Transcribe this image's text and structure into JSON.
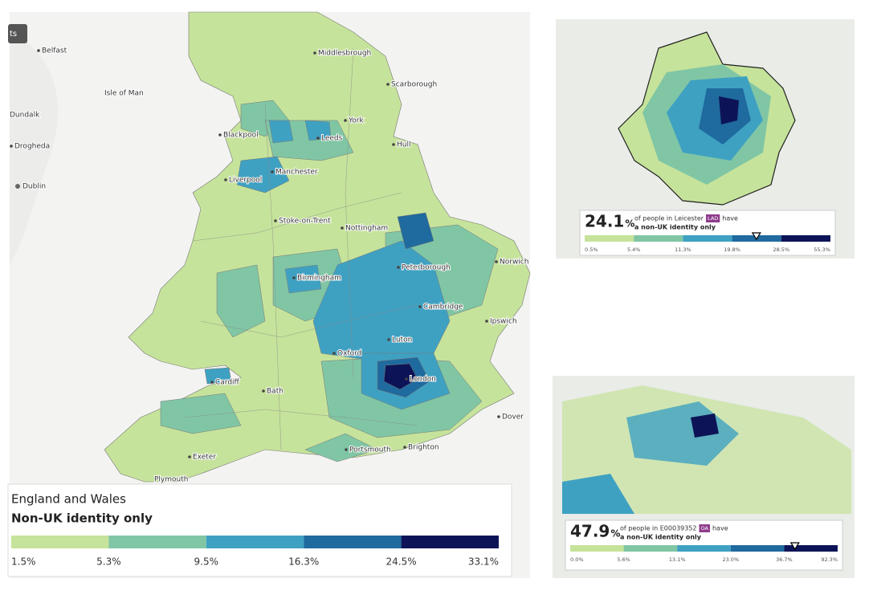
{
  "main_map": {
    "button": "ts",
    "places": [
      "Belfast",
      "Isle of Man",
      "Dundalk",
      "Drogheda",
      "Dublin",
      "Middlesbrough",
      "Scarborough",
      "York",
      "Blackpool",
      "Leeds",
      "Hull",
      "Manchester",
      "Liverpool",
      "Stoke-on-Trent",
      "Nottingham",
      "Norwich",
      "Peterborough",
      "Birmingham",
      "Cambridge",
      "Ipswich",
      "Luton",
      "Oxford",
      "London",
      "Cardiff",
      "Bath",
      "Dover",
      "Exeter",
      "Portsmouth",
      "Brighton",
      "Plymouth"
    ],
    "legend": {
      "area": "England and Wales",
      "title": "Non-UK identity only",
      "colors": [
        "#c6e39b",
        "#80c6a5",
        "#3fa1c2",
        "#1f6a9e",
        "#0c1457"
      ],
      "breaks": [
        "1.5%",
        "5.3%",
        "9.5%",
        "16.3%",
        "24.5%",
        "33.1%"
      ]
    }
  },
  "inset_leicester": {
    "value": 24.1,
    "unit": "%",
    "text": "of people in Leicester",
    "badge": "LAD",
    "text_after": "have",
    "measure": "a non-UK identity only",
    "colors": [
      "#c6e39b",
      "#80c6a5",
      "#3fa1c2",
      "#1f6a9e",
      "#0c1457"
    ],
    "breaks": [
      {
        "value": 0.5,
        "label": "0.5%"
      },
      {
        "value": 5.4,
        "label": "5.4%"
      },
      {
        "value": 11.3,
        "label": "11.3%"
      },
      {
        "value": 19.8,
        "label": "19.8%"
      },
      {
        "value": 28.5,
        "label": "28.5%"
      },
      {
        "value": 55.3,
        "label": "55.3%"
      }
    ]
  },
  "inset_oa": {
    "value": 47.9,
    "unit": "%",
    "text": "of people in E00039352",
    "badge": "OA",
    "text_after": "have",
    "measure": "a non-UK identity only",
    "colors": [
      "#c6e39b",
      "#80c6a5",
      "#3fa1c2",
      "#1f6a9e",
      "#0c1457"
    ],
    "breaks": [
      {
        "value": 0.0,
        "label": "0.0%"
      },
      {
        "value": 5.6,
        "label": "5.6%"
      },
      {
        "value": 13.1,
        "label": "13.1%"
      },
      {
        "value": 23.0,
        "label": "23.0%"
      },
      {
        "value": 36.7,
        "label": "36.7%"
      },
      {
        "value": 92.3,
        "label": "92.3%"
      }
    ]
  }
}
